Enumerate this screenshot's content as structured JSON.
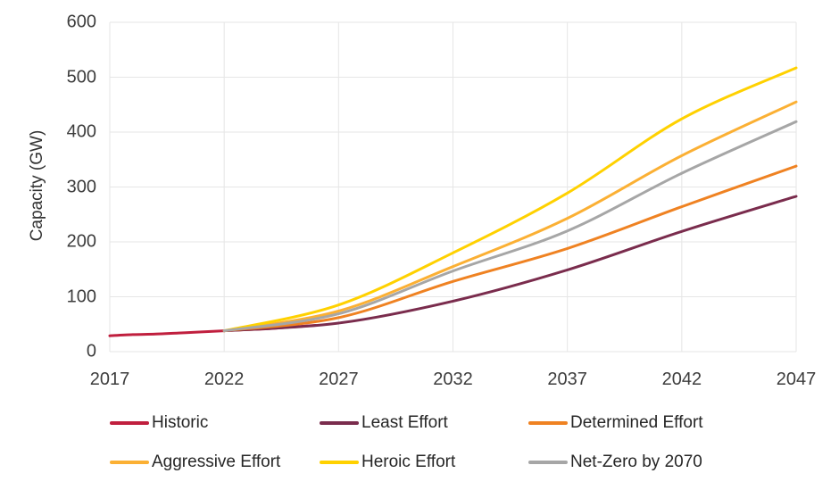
{
  "chart_data": {
    "type": "line",
    "ylabel": "Capacity (GW)",
    "xlabel": "",
    "xlim": [
      2017,
      2047
    ],
    "ylim": [
      0,
      600
    ],
    "x_ticks": [
      2017,
      2022,
      2027,
      2032,
      2037,
      2042,
      2047
    ],
    "y_ticks": [
      0,
      100,
      200,
      300,
      400,
      500,
      600
    ],
    "grid": true,
    "grid_color": "#E6E6E6",
    "legend_position": "bottom",
    "series": [
      {
        "name": "Historic",
        "color": "#C01F3E",
        "x": [
          2017,
          2018,
          2019,
          2020,
          2021,
          2022,
          2023,
          2024,
          2025,
          2026
        ],
        "values": [
          29,
          31,
          32,
          34,
          36,
          38,
          40,
          42,
          45,
          48
        ]
      },
      {
        "name": "Least Effort",
        "color": "#7A2C4D",
        "x": [
          2022,
          2027,
          2032,
          2037,
          2042,
          2047
        ],
        "values": [
          38,
          52,
          92,
          149,
          219,
          283
        ]
      },
      {
        "name": "Determined Effort",
        "color": "#EF8222",
        "x": [
          2022,
          2027,
          2032,
          2037,
          2042,
          2047
        ],
        "values": [
          38,
          62,
          128,
          188,
          264,
          338
        ]
      },
      {
        "name": "Aggressive Effort",
        "color": "#FBB034",
        "x": [
          2022,
          2027,
          2032,
          2037,
          2042,
          2047
        ],
        "values": [
          38,
          74,
          155,
          243,
          357,
          455
        ]
      },
      {
        "name": "Heroic Effort",
        "color": "#FFD100",
        "x": [
          2022,
          2027,
          2032,
          2037,
          2042,
          2047
        ],
        "values": [
          38,
          85,
          180,
          289,
          424,
          517
        ]
      },
      {
        "name": "Net-Zero by 2070",
        "color": "#A6A6A6",
        "x": [
          2022,
          2027,
          2032,
          2037,
          2042,
          2047
        ],
        "values": [
          38,
          69,
          147,
          220,
          325,
          419
        ]
      }
    ],
    "legend_rows": [
      [
        "Historic",
        "Least Effort",
        "Determined Effort"
      ],
      [
        "Aggressive Effort",
        "Heroic Effort",
        "Net-Zero by 2070"
      ]
    ]
  }
}
